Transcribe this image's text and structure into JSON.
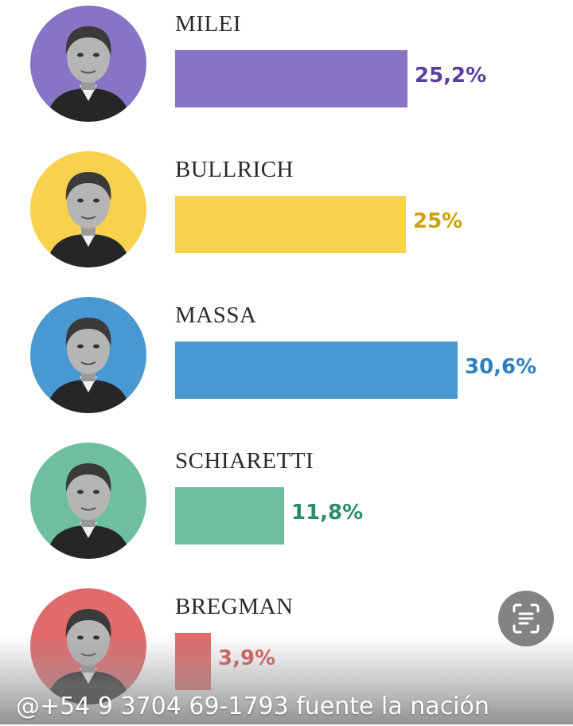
{
  "chart_data": {
    "type": "bar",
    "orientation": "horizontal",
    "categories": [
      "MILEI",
      "BULLRICH",
      "MASSA",
      "SCHIARETTI",
      "BREGMAN"
    ],
    "values": [
      25.2,
      25,
      30.6,
      11.8,
      3.9
    ],
    "value_labels": [
      "25,2%",
      "25%",
      "30,6%",
      "11,8%",
      "3,9%"
    ],
    "colors": [
      "#8874c4",
      "#f8d24c",
      "#4a98d2",
      "#6fbf9f",
      "#e06a6c"
    ],
    "label_colors": [
      "#5a3fa0",
      "#cfa200",
      "#2f7fc0",
      "#2d8b66",
      "#d9595b"
    ],
    "unit": "%",
    "title": "",
    "xlabel": "",
    "ylabel": ""
  },
  "footer": {
    "text": "@+54 9 3704 69-1793 fuente la nación"
  },
  "scan_button": {
    "icon": "text-scan-icon"
  }
}
